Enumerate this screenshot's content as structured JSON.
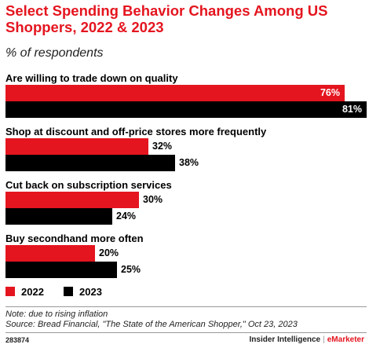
{
  "chart_data": {
    "type": "bar",
    "orientation": "horizontal",
    "title": "Select Spending Behavior Changes Among US Shoppers, 2022 & 2023",
    "subtitle": "% of respondents",
    "categories": [
      "Are willing to trade down on quality",
      "Shop at discount and off-price stores more frequently",
      "Cut back on subscription services",
      "Buy secondhand more often"
    ],
    "series": [
      {
        "name": "2022",
        "values": [
          76,
          32,
          30,
          20
        ],
        "color": "#e4151f"
      },
      {
        "name": "2023",
        "values": [
          81,
          38,
          24,
          25
        ],
        "color": "#000000"
      }
    ],
    "value_suffix": "%",
    "xlim": [
      0,
      81
    ],
    "grid": false,
    "legend": "bottom-left"
  },
  "note": "Note: due to rising inflation",
  "source": "Source: Bread Financial, \"The State of the American Shopper,\" Oct 23, 2023",
  "footer": {
    "chart_id": "283874",
    "publisher": "Insider Intelligence",
    "separator": "|",
    "brand": "eMarketer"
  }
}
